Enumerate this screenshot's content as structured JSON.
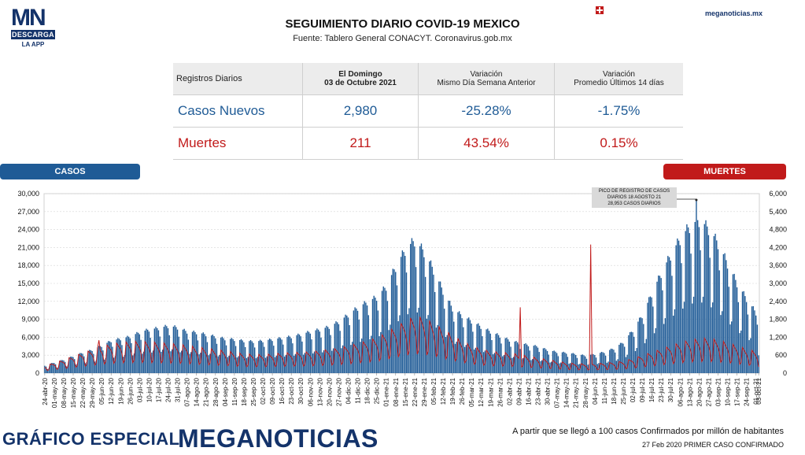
{
  "logo": {
    "main": "MN",
    "descarga": "DESCARGA",
    "app": "LA APP"
  },
  "header": {
    "title": "SEGUIMIENTO DIARIO COVID-19 MEXICO",
    "subtitle": "Fuente: Tablero General CONACYT. Coronavirus.gob.mx",
    "site": "meganoticias.mx"
  },
  "table": {
    "col0": "Registros Diarios",
    "col1_l1": "El Domingo",
    "col1_l2": "03 de Octubre 2021",
    "col2_l1": "Variación",
    "col2_l2": "Mismo Día Semana Anterior",
    "col3_l1": "Variación",
    "col3_l2": "Promedio Últimos 14 días",
    "rows": [
      {
        "label": "Casos Nuevos",
        "today": "2,980",
        "var_week": "-25.28%",
        "var_14": "-1.75%"
      },
      {
        "label": "Muertes",
        "today": "211",
        "var_week": "43.54%",
        "var_14": "0.15%"
      }
    ]
  },
  "legend": {
    "left": "CASOS",
    "right": "MUERTES"
  },
  "annotation": {
    "l1": "PICO DE REGISTRO DE CASOS",
    "l2": "DIARIOS 18 AGOSTO 21",
    "l3": "28,953 CASOS DIARIOS"
  },
  "footer": {
    "brand_left": "GRÁFICO ESPECIAL",
    "brand_right": "MEGANOTICIAS",
    "note1": "A partir que se llegó a 100 casos Confirmados por millón de habitantes",
    "note2": "27 Feb 2020 PRIMER CASO CONFIRMADO"
  },
  "colors": {
    "casos": "#1f5b96",
    "muertes": "#c11a1a",
    "brand": "#14336a"
  },
  "chart_data": {
    "type": "bar",
    "x_start": "2020-04-24",
    "x_end": "2021-10-03",
    "yleft_ticks": [
      "0",
      "3,000",
      "6,000",
      "9,000",
      "12,000",
      "15,000",
      "18,000",
      "21,000",
      "24,000",
      "27,000",
      "30,000"
    ],
    "yleft_lim": [
      0,
      30000
    ],
    "yright_ticks": [
      "0",
      "600",
      "1,200",
      "1,800",
      "2,400",
      "3,000",
      "3,600",
      "4,200",
      "4,800",
      "5,400",
      "6,000"
    ],
    "yright_lim": [
      0,
      6000
    ],
    "x_ticks": [
      "24-abr-20",
      "01-may-20",
      "08-may-20",
      "15-may-20",
      "22-may-20",
      "29-may-20",
      "05-jun-20",
      "12-jun-20",
      "19-jun-20",
      "26-jun-20",
      "03-jul-20",
      "10-jul-20",
      "17-jul-20",
      "24-jul-20",
      "31-jul-20",
      "07-ago-20",
      "14-ago-20",
      "21-ago-20",
      "28-ago-20",
      "04-sep-20",
      "11-sep-20",
      "18-sep-20",
      "25-sep-20",
      "02-oct-20",
      "09-oct-20",
      "16-oct-20",
      "23-oct-20",
      "30-oct-20",
      "06-nov-20",
      "13-nov-20",
      "20-nov-20",
      "27-nov-20",
      "04-dic-20",
      "11-dic-20",
      "18-dic-20",
      "25-dic-20",
      "01-ene-21",
      "08-ene-21",
      "15-ene-21",
      "22-ene-21",
      "29-ene-21",
      "05-feb-21",
      "12-feb-21",
      "19-feb-21",
      "26-feb-21",
      "05-mar-21",
      "12-mar-21",
      "19-mar-21",
      "26-mar-21",
      "02-abr-21",
      "09-abr-21",
      "16-abr-21",
      "23-abr-21",
      "30-abr-21",
      "07-may-21",
      "14-may-21",
      "21-may-21",
      "28-may-21",
      "04-jun-21",
      "11-jun-21",
      "18-jun-21",
      "25-jun-21",
      "02-jul-21",
      "09-jul-21",
      "16-jul-21",
      "23-jul-21",
      "30-jul-21",
      "06-ago-21",
      "13-ago-21",
      "20-ago-21",
      "27-ago-21",
      "03-sep-21",
      "10-sep-21",
      "17-sep-21",
      "24-sep-21",
      "01-oct-21",
      "03-oct-21"
    ],
    "series": [
      {
        "name": "CASOS",
        "axis": "left",
        "weekly_avg": [
          1100,
          1500,
          1900,
          2400,
          2900,
          3300,
          3900,
          4600,
          4900,
          5200,
          5800,
          6200,
          6400,
          6700,
          6500,
          5900,
          5800,
          5500,
          5200,
          4900,
          4800,
          4600,
          4500,
          4600,
          4800,
          5000,
          5200,
          5500,
          5900,
          6200,
          6600,
          7300,
          8300,
          9300,
          10100,
          10800,
          12300,
          15100,
          17500,
          18900,
          17300,
          14700,
          11700,
          9200,
          8200,
          7400,
          6600,
          5900,
          5300,
          4700,
          4300,
          4000,
          3800,
          3300,
          3000,
          2900,
          2700,
          2500,
          2700,
          3000,
          3500,
          4400,
          6100,
          8200,
          11300,
          14200,
          16800,
          19100,
          20900,
          21800,
          20600,
          18500,
          15600,
          12800,
          10600,
          8600,
          8100
        ],
        "peak": {
          "date": "2021-08-18",
          "value": 28953
        },
        "last": {
          "date": "2021-10-03",
          "value": 2980
        }
      },
      {
        "name": "MUERTES",
        "axis": "right",
        "weekly_avg": [
          180,
          260,
          330,
          420,
          500,
          580,
          660,
          720,
          760,
          780,
          790,
          780,
          760,
          740,
          720,
          690,
          650,
          620,
          590,
          560,
          520,
          480,
          470,
          460,
          480,
          500,
          510,
          520,
          530,
          560,
          590,
          620,
          680,
          740,
          800,
          880,
          1000,
          1150,
          1300,
          1420,
          1380,
          1250,
          1100,
          950,
          800,
          680,
          600,
          540,
          520,
          500,
          470,
          420,
          380,
          340,
          300,
          260,
          240,
          230,
          240,
          250,
          270,
          300,
          360,
          440,
          520,
          600,
          680,
          760,
          820,
          860,
          870,
          820,
          760,
          680,
          600,
          540,
          520
        ],
        "spikes": [
          {
            "date": "2020-06-03",
            "value": 1100
          },
          {
            "date": "2021-04-10",
            "value": 2200
          },
          {
            "date": "2021-06-01",
            "value": 4300
          }
        ],
        "last": {
          "date": "2021-10-03",
          "value": 211
        }
      }
    ]
  }
}
